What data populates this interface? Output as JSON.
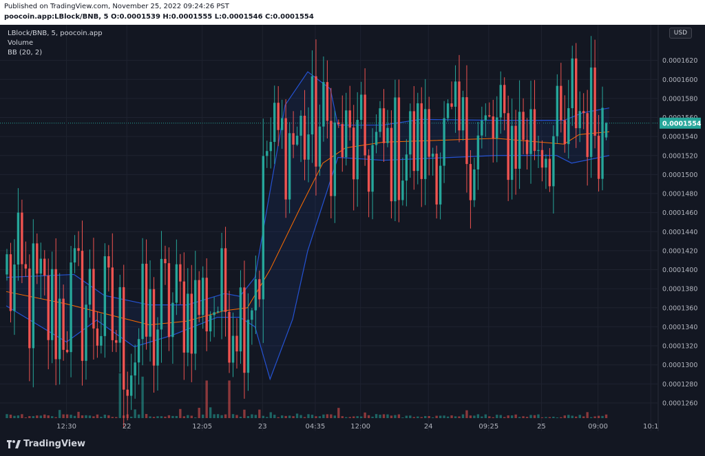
{
  "header": {
    "published": "Published on TradingView.com, November 25, 2022 09:24:26 PST",
    "symbol": "poocoin.app:LBlock/BNB, 5",
    "ohlc": "O:0.0001539 H:0.0001555 L:0.0001546 C:0.0001554"
  },
  "legend": {
    "symbol": "LBlock/BNB, 5, poocoin.app",
    "volume": "Volume",
    "bb": "BB (20, 2)"
  },
  "currency": "USD",
  "brand": "TradingView",
  "price_axis": {
    "labels": [
      "0.0001620",
      "0.0001600",
      "0.0001580",
      "0.0001560",
      "0.0001540",
      "0.0001520",
      "0.0001500",
      "0.0001480",
      "0.0001460",
      "0.0001440",
      "0.0001420",
      "0.0001400",
      "0.0001380",
      "0.0001360",
      "0.0001340",
      "0.0001320",
      "0.0001300",
      "0.0001280",
      "0.0001260"
    ],
    "current": "0.0001554"
  },
  "time_axis": {
    "labels": [
      "12:30",
      "22",
      "12:05",
      "23",
      "04:35",
      "12:00",
      "24",
      "09:25",
      "25",
      "09:00",
      "10:1"
    ]
  },
  "colors": {
    "up": "#26a69a",
    "down": "#ef5350",
    "band": "#2962ff",
    "basis": "#ff6d00",
    "current": "#26a69a"
  },
  "chart_data": {
    "type": "candlestick",
    "symbol": "LBlock/BNB",
    "interval": "5",
    "source": "poocoin.app",
    "ylim": [
      0.0001252,
      0.000164
    ],
    "current_price": 0.0001554,
    "last_candle": {
      "open": 0.0001539,
      "high": 0.0001555,
      "low": 0.0001546,
      "close": 0.0001554
    },
    "x_ticks": [
      "12:30",
      "22",
      "12:05",
      "23",
      "04:35",
      "12:00",
      "24",
      "09:25",
      "25",
      "09:00"
    ],
    "segments": [
      {
        "from": 0,
        "to": 12,
        "p0": 0.0001395,
        "p1": 0.0001352,
        "vol": 0.0001
      },
      {
        "from": 12,
        "to": 22,
        "p0": 0.0001352,
        "p1": 0.0001368,
        "vol": 0.0001
      },
      {
        "from": 22,
        "to": 34,
        "p0": 0.0001368,
        "p1": 0.0001318,
        "vol": 0.0001
      },
      {
        "from": 34,
        "to": 44,
        "p0": 0.0001318,
        "p1": 0.000136,
        "vol": 0.0001
      },
      {
        "from": 44,
        "to": 56,
        "p0": 0.000136,
        "p1": 0.0001368,
        "vol": 8e-05
      },
      {
        "from": 56,
        "to": 63,
        "p0": 0.0001368,
        "p1": 0.000136,
        "vol": 8e-05
      },
      {
        "from": 63,
        "to": 68,
        "p0": 0.000136,
        "p1": 0.0001414,
        "vol": 0.0001
      },
      {
        "from": 68,
        "to": 70,
        "p0": 0.0001414,
        "p1": 0.0001528,
        "vol": 0.0001
      },
      {
        "from": 70,
        "to": 84,
        "p0": 0.0001528,
        "p1": 0.0001548,
        "vol": 8e-05
      },
      {
        "from": 84,
        "to": 94,
        "p0": 0.0001548,
        "p1": 0.000152,
        "vol": 8e-05
      },
      {
        "from": 94,
        "to": 140,
        "p0": 0.000152,
        "p1": 0.0001545,
        "vol": 8e-05
      },
      {
        "from": 140,
        "to": 150,
        "p0": 0.0001545,
        "p1": 0.0001528,
        "vol": 8e-05
      },
      {
        "from": 150,
        "to": 151,
        "p0": 0.0001528,
        "p1": 0.0001574,
        "vol": 0.0001
      },
      {
        "from": 151,
        "to": 160,
        "p0": 0.0001574,
        "p1": 0.0001554,
        "vol": 8e-05
      }
    ],
    "bollinger": {
      "upper": [
        [
          0,
          0.0001392
        ],
        [
          18,
          0.0001395
        ],
        [
          26,
          0.0001373
        ],
        [
          38,
          0.0001363
        ],
        [
          48,
          0.0001363
        ],
        [
          58,
          0.0001375
        ],
        [
          62,
          0.0001372
        ],
        [
          66,
          0.0001392
        ],
        [
          74,
          0.0001573
        ],
        [
          80,
          0.0001608
        ],
        [
          86,
          0.000159
        ],
        [
          88,
          0.0001552
        ],
        [
          100,
          0.0001552
        ],
        [
          110,
          0.0001558
        ],
        [
          130,
          0.0001557
        ],
        [
          148,
          0.0001557
        ],
        [
          153,
          0.0001565
        ],
        [
          160,
          0.000157
        ]
      ],
      "lower": [
        [
          0,
          0.0001362
        ],
        [
          16,
          0.0001324
        ],
        [
          24,
          0.0001347
        ],
        [
          34,
          0.0001319
        ],
        [
          44,
          0.0001331
        ],
        [
          56,
          0.000135
        ],
        [
          62,
          0.000135
        ],
        [
          66,
          0.000134
        ],
        [
          70,
          0.0001285
        ],
        [
          76,
          0.0001348
        ],
        [
          80,
          0.000142
        ],
        [
          88,
          0.0001518
        ],
        [
          100,
          0.0001515
        ],
        [
          130,
          0.000152
        ],
        [
          146,
          0.000152
        ],
        [
          150,
          0.0001512
        ],
        [
          160,
          0.000152
        ]
      ],
      "basis": [
        [
          0,
          0.0001377
        ],
        [
          16,
          0.0001364
        ],
        [
          28,
          0.0001352
        ],
        [
          38,
          0.0001342
        ],
        [
          48,
          0.0001346
        ],
        [
          58,
          0.0001357
        ],
        [
          64,
          0.000136
        ],
        [
          70,
          0.00014
        ],
        [
          78,
          0.0001465
        ],
        [
          84,
          0.0001512
        ],
        [
          90,
          0.0001528
        ],
        [
          100,
          0.0001534
        ],
        [
          130,
          0.0001538
        ],
        [
          148,
          0.0001532
        ],
        [
          152,
          0.0001542
        ],
        [
          160,
          0.0001545
        ]
      ]
    },
    "volume_spikes": [
      [
        30,
        9.3e-05
      ],
      [
        36,
        8.6e-05
      ],
      [
        53,
        7.8e-05
      ],
      [
        59,
        7.8e-05
      ]
    ]
  }
}
